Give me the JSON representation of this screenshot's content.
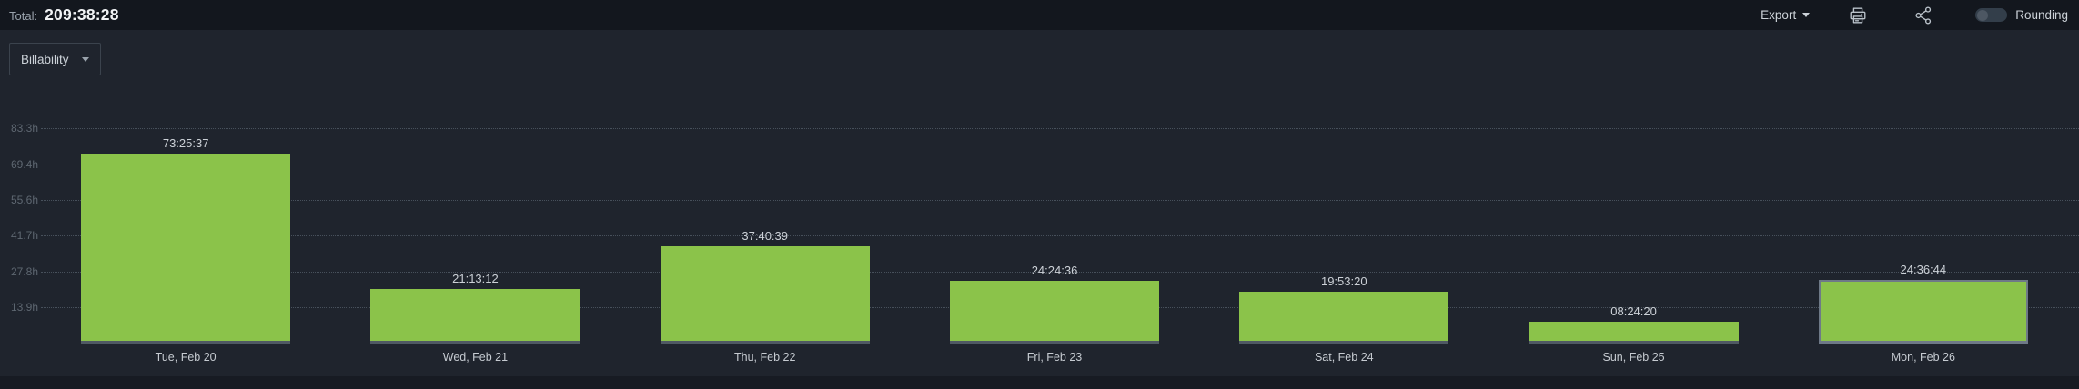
{
  "header": {
    "total_label": "Total:",
    "total_value": "209:38:28",
    "export_label": "Export",
    "rounding_label": "Rounding",
    "rounding_enabled": false
  },
  "toolbar": {
    "billability_label": "Billability"
  },
  "colors": {
    "bar": "#8bc34a",
    "bar_bottom_edge": "#4f5963",
    "card_background": "#1f242d",
    "top_bar_background": "#13171e",
    "gridline": "#47505b",
    "y_label": "#5e6771",
    "x_label": "#c6cbd1"
  },
  "chart_data": {
    "type": "bar",
    "title": "",
    "xlabel": "",
    "ylabel": "",
    "categories": [
      "Tue, Feb 20",
      "Wed, Feb 21",
      "Thu, Feb 22",
      "Fri, Feb 23",
      "Sat, Feb 24",
      "Sun, Feb 25",
      "Mon, Feb 26"
    ],
    "values_label": [
      "73:25:37",
      "21:13:12",
      "37:40:39",
      "24:24:36",
      "19:53:20",
      "08:24:20",
      "24:36:44"
    ],
    "values_hours": [
      73.427,
      21.22,
      37.678,
      24.41,
      19.889,
      8.406,
      24.612
    ],
    "yticks": [
      {
        "hours": 13.89,
        "label": "13.9h"
      },
      {
        "hours": 27.78,
        "label": "27.8h"
      },
      {
        "hours": 41.67,
        "label": "41.7h"
      },
      {
        "hours": 55.56,
        "label": "55.6h"
      },
      {
        "hours": 69.44,
        "label": "69.4h"
      },
      {
        "hours": 83.33,
        "label": "83.3h"
      }
    ],
    "ylim": [
      0,
      83.33
    ],
    "grid": "horizontal-dotted",
    "legend": "none",
    "bar_color": "#8bc34a",
    "highlighted_bar_index": 6
  }
}
